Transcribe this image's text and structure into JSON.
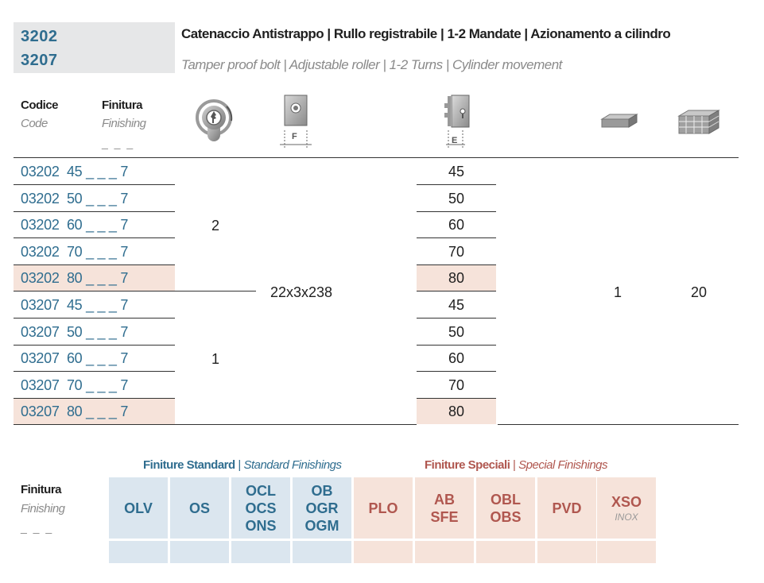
{
  "header": {
    "code_1": "3202",
    "code_2": "3207",
    "title_it": "Catenaccio Antistrappo | Rullo registrabile | 1-2 Mandate | Azionamento a cilindro",
    "title_en": "Tamper proof bolt | Adjustable roller | 1-2 Turns | Cylinder movement"
  },
  "table": {
    "col_code_it": "Codice",
    "col_code_en": "Code",
    "col_finish_it": "Finitura",
    "col_finish_en": "Finishing",
    "col_finish_dash": "_ _ _",
    "label_f": "F",
    "label_e": "E",
    "rows": [
      {
        "code": "03202  45 _ _ _ 7",
        "e": "45"
      },
      {
        "code": "03202  50 _ _ _ 7",
        "e": "50"
      },
      {
        "code": "03202  60 _ _ _ 7",
        "e": "60"
      },
      {
        "code": "03202  70 _ _ _ 7",
        "e": "70"
      },
      {
        "code": "03202  80 _ _ _ 7",
        "e": "80"
      },
      {
        "code": "03207  45 _ _ _ 7",
        "e": "45"
      },
      {
        "code": "03207  50 _ _ _ 7",
        "e": "50"
      },
      {
        "code": "03207  60 _ _ _ 7",
        "e": "60"
      },
      {
        "code": "03207  70 _ _ _ 7",
        "e": "70"
      },
      {
        "code": "03207  80 _ _ _ 7",
        "e": "80"
      }
    ],
    "turns_3202": "2",
    "turns_3207": "1",
    "faceplate": "22x3x238",
    "pack_qty": "1",
    "box_qty": "20"
  },
  "finishes": {
    "standard_it": "Finiture Standard",
    "standard_en": "Standard Finishings",
    "special_it": "Finiture Speciali",
    "special_en": "Special Finishings",
    "label_it": "Finitura",
    "label_en": "Finishing",
    "label_dash": "_ _ _",
    "standard": [
      {
        "line1": "OLV"
      },
      {
        "line1": "OS"
      },
      {
        "line1": "OCL",
        "line2": "OCS",
        "line3": "ONS"
      },
      {
        "line1": "OB",
        "line2": "OGR",
        "line3": "OGM"
      }
    ],
    "special": [
      {
        "line1": "PLO"
      },
      {
        "line1": "AB",
        "line2": "SFE"
      },
      {
        "line1": "OBL",
        "line2": "OBS"
      },
      {
        "line1": "PVD"
      },
      {
        "line1": "XSO",
        "sub": "INOX"
      }
    ]
  },
  "icons": [
    "cylinder-key-icon",
    "faceplate-icon",
    "backset-lock-icon",
    "pack-icon",
    "box-icon"
  ],
  "colors": {
    "code_blue": "#2f6d8f",
    "special_red": "#b0574f",
    "highlight": "#f6e3da",
    "std_bg": "#dbe6ef"
  }
}
